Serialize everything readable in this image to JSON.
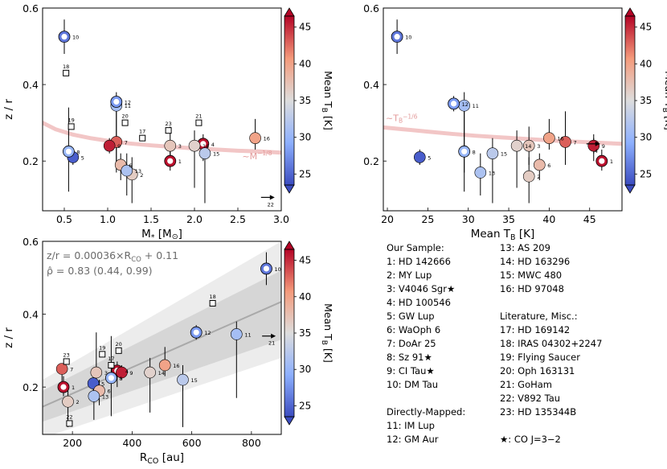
{
  "colorbar": {
    "label": "Mean T",
    "label_sub": "B",
    "label_unit": " [K]",
    "ticks": [
      25,
      30,
      35,
      40,
      45
    ],
    "range": [
      23.5,
      46.5
    ]
  },
  "chart_data": [
    {
      "id": "mass",
      "type": "scatter",
      "xlabel": "M",
      "xlabel_sub": "*",
      "xlabel_unit": " [M",
      "xlabel_tail": "]",
      "ylabel": "z / r",
      "xlim": [
        0.25,
        3.0
      ],
      "ylim": [
        0.07,
        0.6
      ],
      "xticks": [
        0.5,
        1.0,
        1.5,
        2.0,
        2.5,
        3.0
      ],
      "xtick_labels": [
        "0.5",
        "1.0",
        "1.5",
        "2.0",
        "2.5",
        "3.0"
      ],
      "yticks": [
        0.2,
        0.4,
        0.6
      ],
      "ytick_labels": [
        "0.2",
        "0.4",
        "0.6"
      ],
      "fit_label": "~M",
      "fit_exp": "−1/8",
      "fit": {
        "x": [
          0.25,
          0.4,
          0.6,
          0.8,
          1.0,
          1.25,
          1.5,
          1.75,
          2.0,
          2.25,
          2.5,
          2.75,
          3.0
        ],
        "y": [
          0.3,
          0.283,
          0.269,
          0.26,
          0.253,
          0.246,
          0.241,
          0.237,
          0.233,
          0.23,
          0.227,
          0.225,
          0.222
        ]
      },
      "points": [
        {
          "id": "1",
          "x": 1.72,
          "y": 0.2,
          "err": [
            0.175,
            0.23
          ],
          "tb": 46,
          "style": "ring"
        },
        {
          "id": "2",
          "x": 1.28,
          "y": 0.165,
          "err": [
            0.09,
            0.21
          ],
          "tb": 36.5
        },
        {
          "id": "3",
          "x": 1.72,
          "y": 0.24,
          "err": [
            0.19,
            0.29
          ],
          "tb": 37
        },
        {
          "id": "4",
          "x": 2.1,
          "y": 0.245,
          "err": [
            0.2,
            0.27
          ],
          "tb": 46,
          "style": "ring"
        },
        {
          "id": "5",
          "x": 0.6,
          "y": 0.21,
          "err": [
            0.19,
            0.23
          ],
          "tb": 24.5
        },
        {
          "id": "6",
          "x": 1.15,
          "y": 0.19,
          "err": [
            0.15,
            0.22
          ],
          "tb": 38
        },
        {
          "id": "7",
          "x": 1.1,
          "y": 0.25,
          "err": [
            0.19,
            0.33
          ],
          "tb": 43
        },
        {
          "id": "8",
          "x": 0.55,
          "y": 0.225,
          "err": [
            0.12,
            0.34
          ],
          "tb": 30,
          "style": "ring"
        },
        {
          "id": "9",
          "x": 1.02,
          "y": 0.24,
          "err": [
            0.22,
            0.26
          ],
          "tb": 45.5
        },
        {
          "id": "10",
          "x": 0.5,
          "y": 0.525,
          "err": [
            0.48,
            0.57
          ],
          "tb": 26,
          "style": "ring"
        },
        {
          "id": "11",
          "x": 1.1,
          "y": 0.345,
          "err": [
            0.17,
            0.38
          ],
          "tb": 31
        },
        {
          "id": "12",
          "x": 1.1,
          "y": 0.355,
          "err": [
            0.33,
            0.37
          ],
          "tb": 28,
          "style": "ring"
        },
        {
          "id": "13",
          "x": 1.22,
          "y": 0.175,
          "err": [
            0.11,
            0.22
          ],
          "tb": 31.5
        },
        {
          "id": "14",
          "x": 2.0,
          "y": 0.24,
          "err": [
            0.13,
            0.28
          ],
          "tb": 36
        },
        {
          "id": "15",
          "x": 2.12,
          "y": 0.22,
          "err": [
            0.09,
            0.26
          ],
          "tb": 32.5
        },
        {
          "id": "16",
          "x": 2.7,
          "y": 0.26,
          "err": [
            0.23,
            0.31
          ],
          "tb": 40
        },
        {
          "id": "17",
          "x": 1.4,
          "y": 0.26,
          "style": "square"
        },
        {
          "id": "18",
          "x": 0.52,
          "y": 0.43,
          "style": "square"
        },
        {
          "id": "19",
          "x": 0.58,
          "y": 0.29,
          "style": "square"
        },
        {
          "id": "20",
          "x": 1.2,
          "y": 0.3,
          "style": "square"
        },
        {
          "id": "21",
          "x": 2.05,
          "y": 0.3,
          "style": "square"
        },
        {
          "id": "22",
          "x": 2.85,
          "y": 0.105,
          "style": "arrow"
        },
        {
          "id": "23",
          "x": 1.7,
          "y": 0.28,
          "style": "square"
        }
      ]
    },
    {
      "id": "tb",
      "type": "scatter",
      "xlabel": "Mean T",
      "xlabel_sub": "B",
      "xlabel_unit": " [K]",
      "ylabel": "",
      "xlim": [
        19.5,
        49
      ],
      "ylim": [
        0.07,
        0.6
      ],
      "xticks": [
        20,
        25,
        30,
        35,
        40,
        45
      ],
      "xtick_labels": [
        "20",
        "25",
        "30",
        "35",
        "40",
        "45"
      ],
      "yticks": [
        0.2,
        0.4,
        0.6
      ],
      "ytick_labels": [
        "0.2",
        "0.4",
        "0.6"
      ],
      "fit_label": "~T",
      "fit_sub": "B",
      "fit_exp": "−1/6",
      "fit": {
        "x": [
          19.5,
          22,
          25,
          28,
          31,
          34,
          37,
          40,
          43,
          46,
          49
        ],
        "y": [
          0.288,
          0.283,
          0.277,
          0.271,
          0.266,
          0.262,
          0.258,
          0.254,
          0.251,
          0.248,
          0.245
        ]
      },
      "points": [
        {
          "id": "1",
          "x": 46.5,
          "y": 0.2,
          "err": [
            0.175,
            0.23
          ],
          "tb": 46,
          "style": "ring"
        },
        {
          "id": "2",
          "x": 37.5,
          "y": 0.16,
          "err": [
            0.09,
            0.21
          ],
          "tb": 36.5
        },
        {
          "id": "3",
          "x": 37.5,
          "y": 0.24,
          "err": [
            0.19,
            0.29
          ],
          "tb": 37
        },
        {
          "id": "4",
          "x": 45.5,
          "y": 0.245,
          "err": [
            0.2,
            0.27
          ],
          "tb": 46,
          "style": "arrow"
        },
        {
          "id": "5",
          "x": 24.0,
          "y": 0.21,
          "err": [
            0.19,
            0.23
          ],
          "tb": 24.5
        },
        {
          "id": "6",
          "x": 38.8,
          "y": 0.19,
          "err": [
            0.15,
            0.22
          ],
          "tb": 38
        },
        {
          "id": "7",
          "x": 42.0,
          "y": 0.25,
          "err": [
            0.19,
            0.33
          ],
          "tb": 43
        },
        {
          "id": "8",
          "x": 29.5,
          "y": 0.225,
          "err": [
            0.12,
            0.34
          ],
          "tb": 30,
          "style": "ring"
        },
        {
          "id": "9",
          "x": 45.5,
          "y": 0.24,
          "err": [
            0.22,
            0.26
          ],
          "tb": 45.5
        },
        {
          "id": "10",
          "x": 21.2,
          "y": 0.525,
          "err": [
            0.48,
            0.57
          ],
          "tb": 26,
          "style": "ring"
        },
        {
          "id": "11",
          "x": 29.5,
          "y": 0.345,
          "err": [
            0.17,
            0.38
          ],
          "tb": 31
        },
        {
          "id": "12",
          "x": 28.2,
          "y": 0.35,
          "err": [
            0.33,
            0.37
          ],
          "tb": 28,
          "style": "ring"
        },
        {
          "id": "13",
          "x": 31.5,
          "y": 0.17,
          "err": [
            0.11,
            0.22
          ],
          "tb": 31.5
        },
        {
          "id": "14",
          "x": 36.0,
          "y": 0.24,
          "err": [
            0.13,
            0.28
          ],
          "tb": 36
        },
        {
          "id": "15",
          "x": 33.0,
          "y": 0.22,
          "err": [
            0.09,
            0.26
          ],
          "tb": 32.5
        },
        {
          "id": "16",
          "x": 40.0,
          "y": 0.26,
          "err": [
            0.23,
            0.31
          ],
          "tb": 40
        }
      ]
    },
    {
      "id": "rco",
      "type": "scatter",
      "xlabel": "R",
      "xlabel_sub": "CO",
      "xlabel_unit": " [au]",
      "ylabel": "z / r",
      "xlim": [
        100,
        900
      ],
      "ylim": [
        0.07,
        0.6
      ],
      "xticks": [
        200,
        400,
        600,
        800
      ],
      "xtick_labels": [
        "200",
        "400",
        "600",
        "800"
      ],
      "yticks": [
        0.2,
        0.4,
        0.6
      ],
      "ytick_labels": [
        "0.2",
        "0.4",
        "0.6"
      ],
      "annotation_1": "z/r = 0.00036×R",
      "annotation_1_sub": "CO",
      "annotation_1_tail": " + 0.11",
      "annotation_2": "ρ̂ = 0.83 (0.44, 0.99)",
      "fit": {
        "slope": 0.00036,
        "intercept": 0.11
      },
      "band_inner": {
        "x": [
          100,
          900
        ],
        "lo": [
          0.105,
          0.33
        ],
        "hi": [
          0.19,
          0.52
        ]
      },
      "band_outer": {
        "x": [
          100,
          900
        ],
        "lo": [
          0.06,
          0.28
        ],
        "hi": [
          0.22,
          0.6
        ]
      },
      "points": [
        {
          "id": "1",
          "x": 170,
          "y": 0.2,
          "err": [
            0.175,
            0.23
          ],
          "tb": 46,
          "style": "ring"
        },
        {
          "id": "2",
          "x": 185,
          "y": 0.16,
          "err": [
            0.09,
            0.21
          ],
          "tb": 36.5
        },
        {
          "id": "3",
          "x": 280,
          "y": 0.24,
          "err": [
            0.19,
            0.35
          ],
          "tb": 37
        },
        {
          "id": "4",
          "x": 350,
          "y": 0.245,
          "err": [
            0.2,
            0.27
          ],
          "tb": 46,
          "style": "ring"
        },
        {
          "id": "5",
          "x": 270,
          "y": 0.21,
          "err": [
            0.19,
            0.23
          ],
          "tb": 24.5
        },
        {
          "id": "6",
          "x": 290,
          "y": 0.19,
          "err": [
            0.15,
            0.22
          ],
          "tb": 38
        },
        {
          "id": "7",
          "x": 165,
          "y": 0.25,
          "err": [
            0.19,
            0.26
          ],
          "tb": 43
        },
        {
          "id": "8",
          "x": 330,
          "y": 0.225,
          "err": [
            0.12,
            0.34
          ],
          "tb": 30,
          "style": "ring"
        },
        {
          "id": "9",
          "x": 365,
          "y": 0.24,
          "err": [
            0.22,
            0.26
          ],
          "tb": 45.5
        },
        {
          "id": "10",
          "x": 850,
          "y": 0.525,
          "err": [
            0.48,
            0.57
          ],
          "tb": 26,
          "style": "ring"
        },
        {
          "id": "11",
          "x": 750,
          "y": 0.345,
          "err": [
            0.17,
            0.38
          ],
          "tb": 31
        },
        {
          "id": "12",
          "x": 615,
          "y": 0.35,
          "err": [
            0.33,
            0.37
          ],
          "tb": 28,
          "style": "ring"
        },
        {
          "id": "13",
          "x": 272,
          "y": 0.175,
          "err": [
            0.11,
            0.22
          ],
          "tb": 31.5
        },
        {
          "id": "14",
          "x": 460,
          "y": 0.24,
          "err": [
            0.13,
            0.28
          ],
          "tb": 36
        },
        {
          "id": "15",
          "x": 570,
          "y": 0.22,
          "err": [
            0.09,
            0.26
          ],
          "tb": 32.5
        },
        {
          "id": "16",
          "x": 510,
          "y": 0.26,
          "err": [
            0.23,
            0.31
          ],
          "tb": 40
        },
        {
          "id": "17",
          "x": 330,
          "y": 0.26,
          "style": "square"
        },
        {
          "id": "18",
          "x": 670,
          "y": 0.43,
          "style": "square"
        },
        {
          "id": "19",
          "x": 300,
          "y": 0.29,
          "style": "square"
        },
        {
          "id": "20",
          "x": 355,
          "y": 0.3,
          "style": "square"
        },
        {
          "id": "21",
          "x": 860,
          "y": 0.34,
          "style": "arrow"
        },
        {
          "id": "22",
          "x": 190,
          "y": 0.1,
          "style": "square"
        },
        {
          "id": "23",
          "x": 180,
          "y": 0.27,
          "style": "square"
        }
      ]
    }
  ],
  "legend": {
    "col1_title": "Our Sample:",
    "col1": [
      "1: HD 142666",
      "2: MY Lup",
      "3: V4046 Sgr★",
      "4: HD 100546",
      "5: GW Lup",
      "6: WaOph 6",
      "7: DoAr 25",
      "8: Sz 91★",
      "9: CI Tau★",
      "10: DM Tau"
    ],
    "col1b_title": "Directly-Mapped:",
    "col1b": [
      "11: IM Lup",
      "12: GM Aur"
    ],
    "col2": [
      "13: AS 209",
      "14: HD 163296",
      "15: MWC 480",
      "16: HD 97048"
    ],
    "col2b_title": "Literature, Misc.:",
    "col2b": [
      "17: HD 169142",
      "18: IRAS 04302+2247",
      "19: Flying Saucer",
      "20: Oph 163131",
      "21: GoHam",
      "22: V892 Tau",
      "23: HD 135344B"
    ],
    "footnote": "★: CO J=3−2"
  }
}
